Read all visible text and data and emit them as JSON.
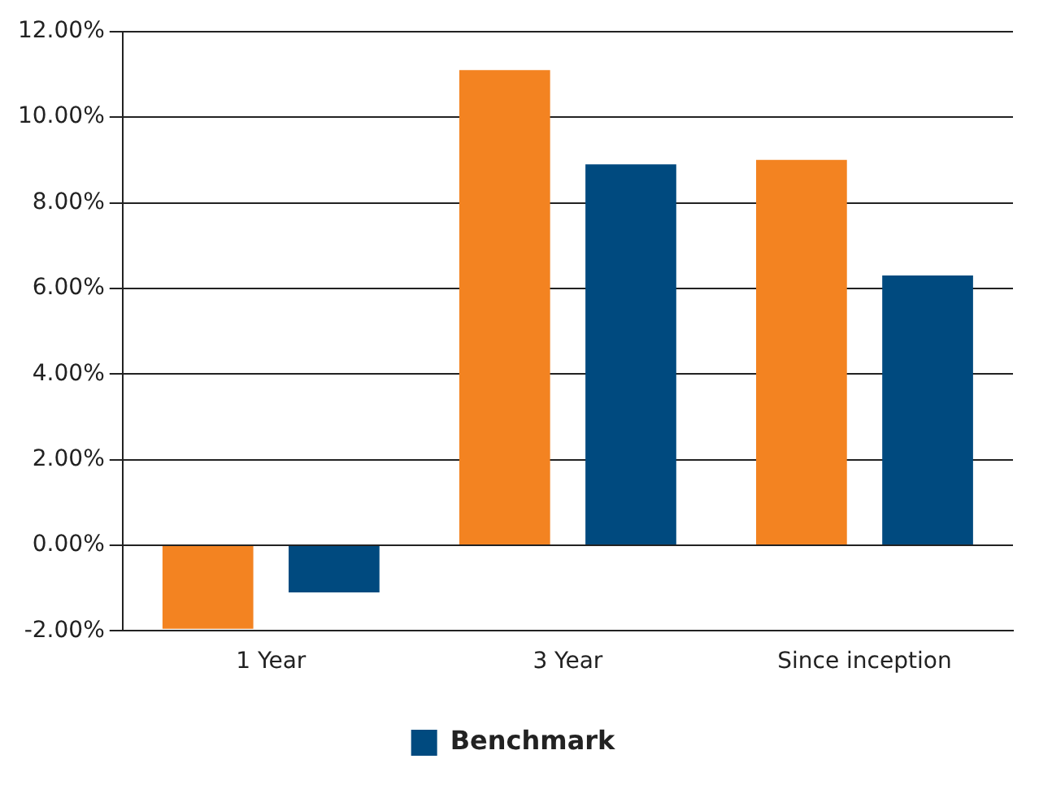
{
  "chart_data": {
    "type": "bar",
    "categories": [
      "1 Year",
      "3 Year",
      "Since inception"
    ],
    "series": [
      {
        "color": "#f38321",
        "values": [
          -1.95,
          11.1,
          9.0
        ]
      },
      {
        "name": "Benchmark",
        "color": "#004a7f",
        "values": [
          -1.1,
          8.9,
          6.3
        ]
      }
    ],
    "ylim": [
      -2,
      12
    ],
    "yticks": [
      {
        "value": -2,
        "label": "-2.00%"
      },
      {
        "value": 0,
        "label": "0.00%"
      },
      {
        "value": 2,
        "label": "2.00%"
      },
      {
        "value": 4,
        "label": "4.00%"
      },
      {
        "value": 6,
        "label": "6.00%"
      },
      {
        "value": 8,
        "label": "8.00%"
      },
      {
        "value": 10,
        "label": "10.00%"
      },
      {
        "value": 12,
        "label": "12.00%"
      }
    ],
    "grid": "y",
    "legend": "bottom"
  }
}
